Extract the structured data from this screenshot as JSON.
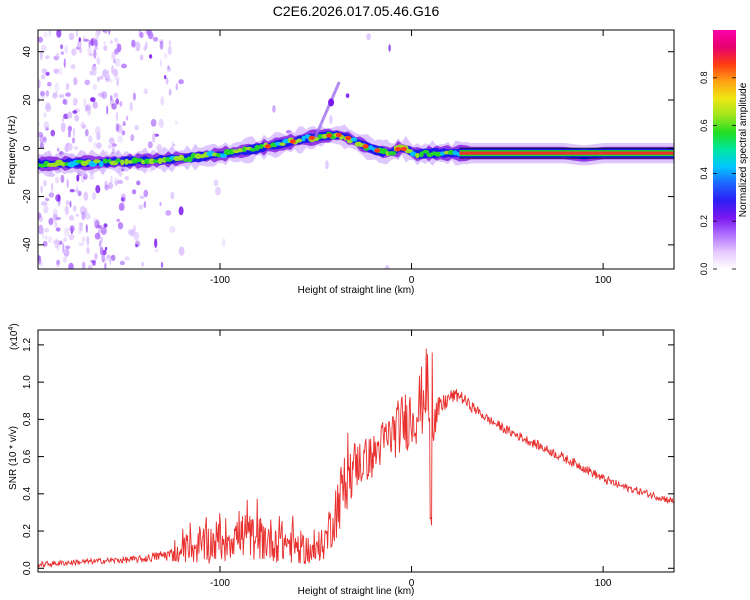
{
  "figure_title": "C2E6.2026.017.05.46.G16",
  "colors": {
    "snr_line": "#e8302e",
    "axis": "#000000",
    "track_core": "#e8302e",
    "track_mid": "#22dd22",
    "track_low": "#1a1aee",
    "track_halo": "#8a2be2",
    "noise": "#9b4be8"
  },
  "chart_data": [
    {
      "type": "heatmap",
      "name": "frequency_vs_height",
      "xlabel": "Height of straight line (km)",
      "ylabel": "Frequency (Hz)",
      "xlim": [
        -195,
        137
      ],
      "ylim": [
        -50,
        49
      ],
      "xticks": [
        -100,
        0,
        100
      ],
      "xtick_labels": [
        "-100",
        "0",
        "100"
      ],
      "yticks": [
        -40,
        -20,
        0,
        20,
        40
      ],
      "ytick_labels": [
        "-40",
        "-20",
        "0",
        "20",
        "40"
      ],
      "trace_centerline": {
        "x": [
          -195,
          -170,
          -150,
          -130,
          -110,
          -90,
          -70,
          -55,
          -45,
          -38,
          -32,
          -26,
          -20,
          -15,
          -10,
          -6,
          -2,
          2,
          10,
          30,
          60,
          80,
          90,
          100,
          110,
          137
        ],
        "y": [
          -6.5,
          -6,
          -5.5,
          -4.8,
          -3.5,
          -1.5,
          1.5,
          4,
          5.2,
          5.5,
          4,
          1.5,
          -0.5,
          -1.5,
          -1.5,
          0,
          -0.5,
          -2.5,
          -2,
          -2,
          -2,
          -2,
          -3,
          -2,
          -2,
          -2
        ]
      },
      "branch_feature": {
        "x": [
          -50,
          -38
        ],
        "y": [
          5,
          27
        ]
      },
      "colorbar": {
        "label": "Normalized spectral amplitude",
        "range": [
          0,
          1
        ],
        "ticks": [
          0.0,
          0.2,
          0.4,
          0.6,
          0.8
        ],
        "tick_labels": [
          "0.0",
          "0.2",
          "0.4",
          "0.6",
          "0.8"
        ],
        "colormap": [
          "#ffffff",
          "#e6c8ff",
          "#b070ff",
          "#7a18f0",
          "#2d1ef5",
          "#1e64ff",
          "#00c8ff",
          "#00e6a0",
          "#22dd22",
          "#a0e61e",
          "#f0e614",
          "#ffa014",
          "#ff3c14",
          "#e6006e",
          "#ff00aa"
        ]
      }
    },
    {
      "type": "line",
      "name": "snr_vs_height",
      "xlabel": "Height of straight line (km)",
      "ylabel": "SNR (10 * v/v)",
      "yscale_label": "(x10",
      "yscale_exp": "4",
      "yscale_close": ")",
      "xlim": [
        -195,
        137
      ],
      "ylim": [
        -0.02,
        1.28
      ],
      "xticks": [
        -100,
        0,
        100
      ],
      "xtick_labels": [
        "-100",
        "0",
        "100"
      ],
      "yticks": [
        0.0,
        0.2,
        0.4,
        0.6,
        0.8,
        1.0,
        1.2
      ],
      "ytick_labels": [
        "0.0",
        "0.2",
        "0.4",
        "0.6",
        "0.8",
        "1.0",
        "1.2"
      ],
      "series": [
        {
          "name": "SNR",
          "x": [
            -195,
            -180,
            -160,
            -140,
            -130,
            -120,
            -110,
            -100,
            -90,
            -80,
            -70,
            -60,
            -50,
            -45,
            -40,
            -35,
            -30,
            -25,
            -20,
            -15,
            -10,
            -5,
            0,
            5,
            8,
            10,
            12,
            15,
            20,
            25,
            30,
            40,
            50,
            60,
            70,
            80,
            90,
            100,
            110,
            120,
            130,
            137
          ],
          "y": [
            0.02,
            0.03,
            0.04,
            0.05,
            0.07,
            0.08,
            0.12,
            0.15,
            0.18,
            0.16,
            0.15,
            0.12,
            0.08,
            0.15,
            0.3,
            0.45,
            0.55,
            0.58,
            0.6,
            0.68,
            0.72,
            0.78,
            0.82,
            0.88,
            1.0,
            0.85,
            0.8,
            0.86,
            0.92,
            0.93,
            0.88,
            0.8,
            0.74,
            0.69,
            0.64,
            0.59,
            0.54,
            0.48,
            0.44,
            0.41,
            0.38,
            0.36
          ],
          "noise_amp": [
            0.015,
            0.015,
            0.015,
            0.02,
            0.03,
            0.05,
            0.1,
            0.12,
            0.12,
            0.12,
            0.12,
            0.1,
            0.06,
            0.1,
            0.16,
            0.18,
            0.14,
            0.12,
            0.12,
            0.12,
            0.14,
            0.16,
            0.18,
            0.2,
            0.2,
            0.2,
            0.12,
            0.06,
            0.04,
            0.035,
            0.03,
            0.025,
            0.025,
            0.025,
            0.025,
            0.025,
            0.025,
            0.025,
            0.02,
            0.02,
            0.02,
            0.02
          ]
        }
      ]
    }
  ]
}
